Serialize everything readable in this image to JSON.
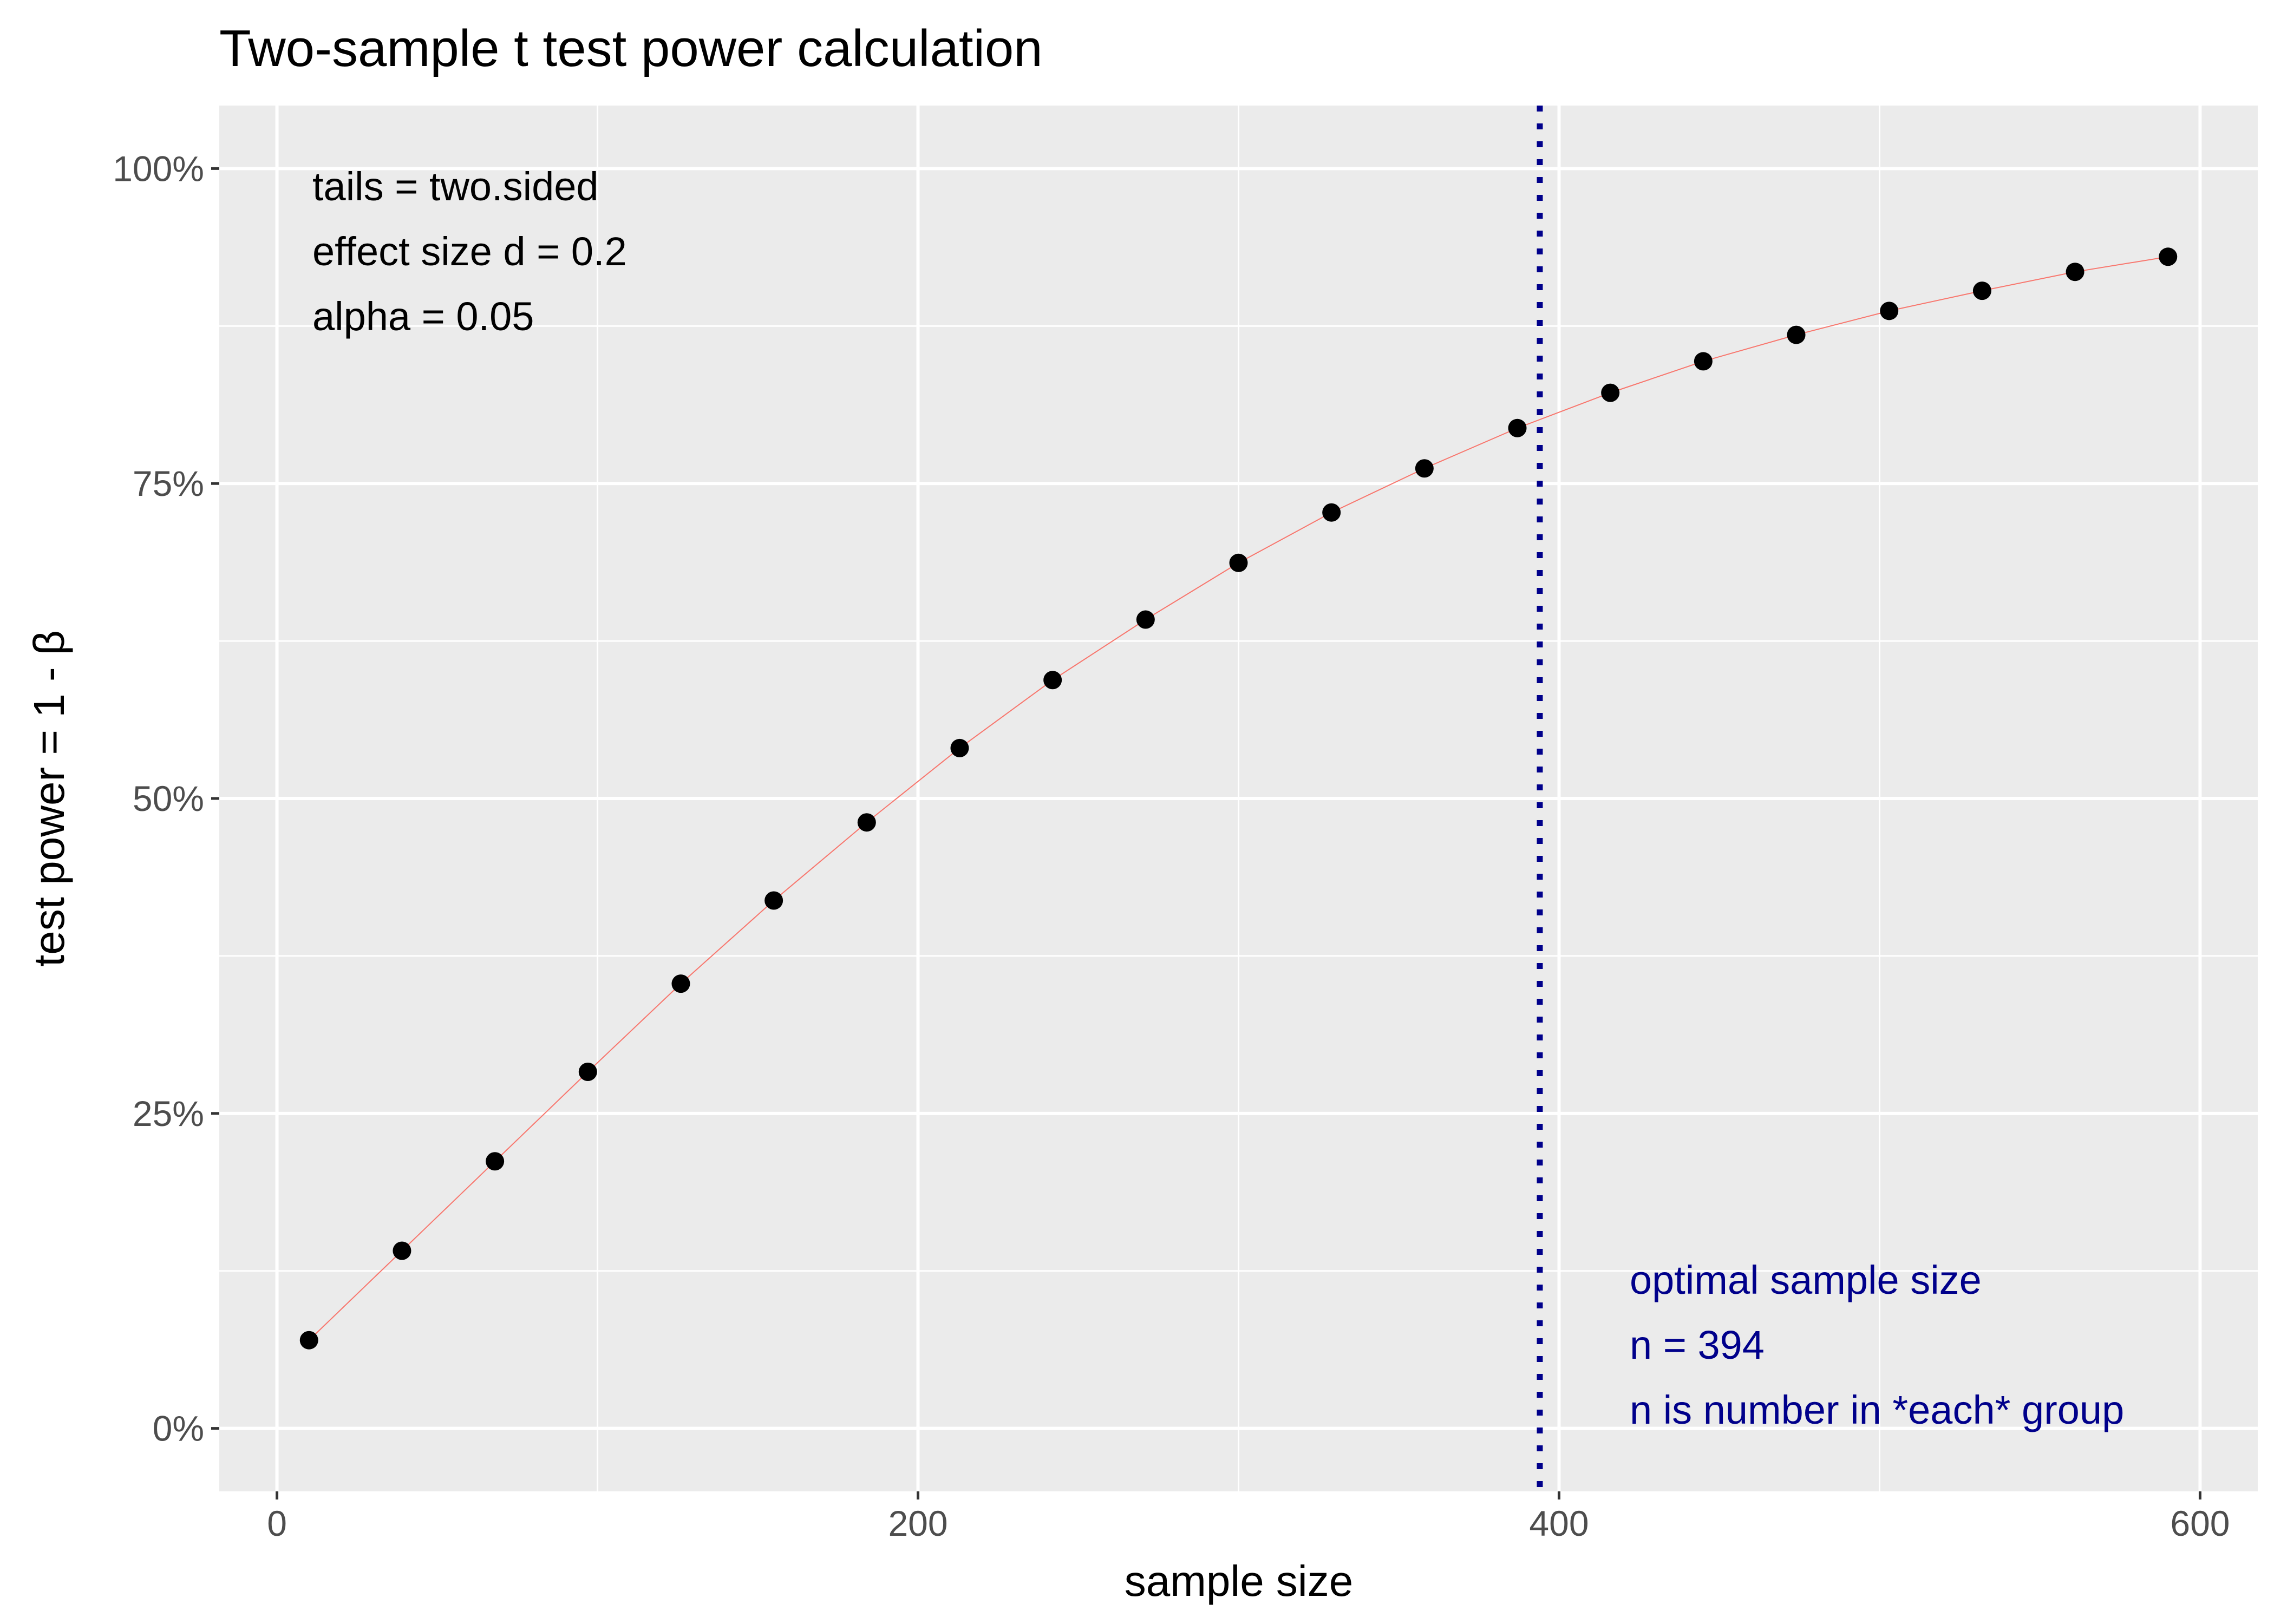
{
  "chart_data": {
    "type": "line",
    "title": "Two-sample t test power calculation",
    "xlabel": "sample size",
    "ylabel": "test power = 1 - β",
    "xlim": [
      -18,
      618
    ],
    "ylim": [
      -0.05,
      1.05
    ],
    "xticks": [
      0,
      200,
      400,
      600
    ],
    "xtick_labels": [
      "0",
      "200",
      "400",
      "600"
    ],
    "yticks": [
      0,
      0.25,
      0.5,
      0.75,
      1.0
    ],
    "ytick_labels": [
      "0%",
      "25%",
      "50%",
      "75%",
      "100%"
    ],
    "grid": true,
    "background": "#ebebeb",
    "line_color": "#f8766d",
    "point_color": "#000000",
    "series": [
      {
        "x": [
          10,
          39,
          68,
          97,
          126,
          155,
          184,
          213,
          242,
          271,
          300,
          329,
          358,
          387,
          416,
          445,
          474,
          503,
          532,
          561,
          590
        ],
        "y": [
          0.07,
          0.141,
          0.212,
          0.283,
          0.353,
          0.419,
          0.481,
          0.54,
          0.594,
          0.642,
          0.687,
          0.727,
          0.762,
          0.794,
          0.822,
          0.847,
          0.868,
          0.887,
          0.903,
          0.918,
          0.93
        ]
      }
    ],
    "vline": {
      "x": 394,
      "color": "#00008b",
      "style": "dotted"
    },
    "annotations": {
      "parameters": [
        "tails = two.sided",
        "effect size d = 0.2",
        "alpha = 0.05"
      ],
      "optimal": [
        "optimal sample size",
        "n = 394",
        "n is number in *each* group"
      ]
    }
  }
}
